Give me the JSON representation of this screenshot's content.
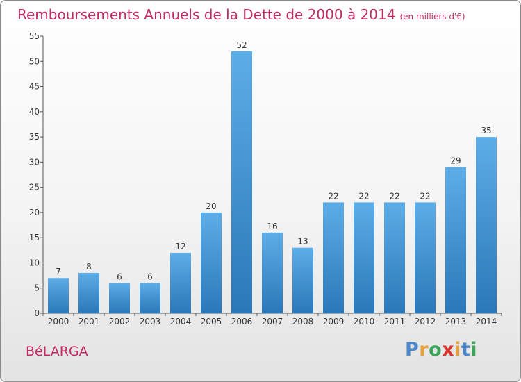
{
  "header": {
    "title": "Remboursements Annuels de la Dette de 2000 à 2014",
    "unit": "(en milliers d'€)"
  },
  "footer": {
    "commune": "BéLARGA",
    "logo_letters": [
      "P",
      "r",
      "o",
      "x",
      "i",
      "t",
      "i"
    ],
    "logo_colors": [
      "#4a86c8",
      "#e8a13a",
      "#3aa356",
      "#d9342b",
      "#e8a13a",
      "#4a86c8",
      "#3aa356"
    ]
  },
  "colors": {
    "title": "#c22b63",
    "bar_top": "#5dade8",
    "bar_bottom": "#2a78b8"
  },
  "chart_data": {
    "type": "bar",
    "title": "Remboursements Annuels de la Dette de 2000 à 2014",
    "subtitle": "(en milliers d'€)",
    "categories": [
      "2000",
      "2001",
      "2002",
      "2003",
      "2004",
      "2005",
      "2006",
      "2007",
      "2008",
      "2009",
      "2010",
      "2011",
      "2012",
      "2013",
      "2014"
    ],
    "values": [
      7,
      8,
      6,
      6,
      12,
      20,
      52,
      16,
      13,
      22,
      22,
      22,
      22,
      29,
      35
    ],
    "ylim": [
      0,
      55
    ],
    "yticks": [
      0,
      5,
      10,
      15,
      20,
      25,
      30,
      35,
      40,
      45,
      50,
      55
    ],
    "grid": false,
    "data_labels": true
  }
}
